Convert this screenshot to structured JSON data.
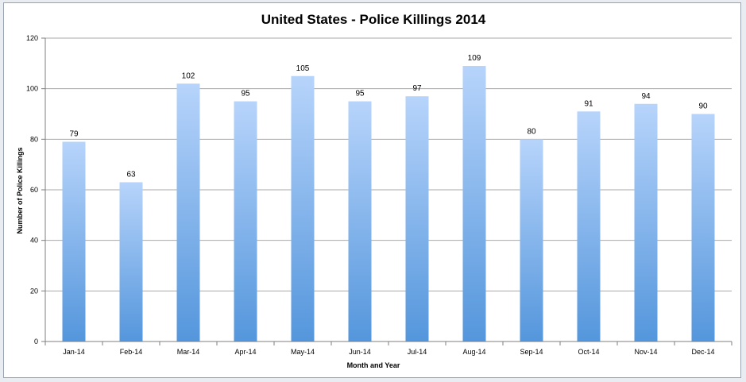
{
  "chart_data": {
    "type": "bar",
    "title": "United States - Police Killings 2014",
    "xlabel": "Month and Year",
    "ylabel": "Number of Police Killings",
    "categories": [
      "Jan-14",
      "Feb-14",
      "Mar-14",
      "Apr-14",
      "May-14",
      "Jun-14",
      "Jul-14",
      "Aug-14",
      "Sep-14",
      "Oct-14",
      "Nov-14",
      "Dec-14"
    ],
    "values": [
      79,
      63,
      102,
      95,
      105,
      95,
      97,
      109,
      80,
      91,
      94,
      90
    ],
    "ylim": [
      0,
      120
    ],
    "yticks": [
      0,
      20,
      40,
      60,
      80,
      100,
      120
    ],
    "grid": true,
    "legend": "none",
    "colors": {
      "bar_top": "#b7d4fb",
      "bar_bottom": "#5496dc",
      "grid": "#a9a9a9",
      "axis": "#7f7f7f"
    }
  }
}
